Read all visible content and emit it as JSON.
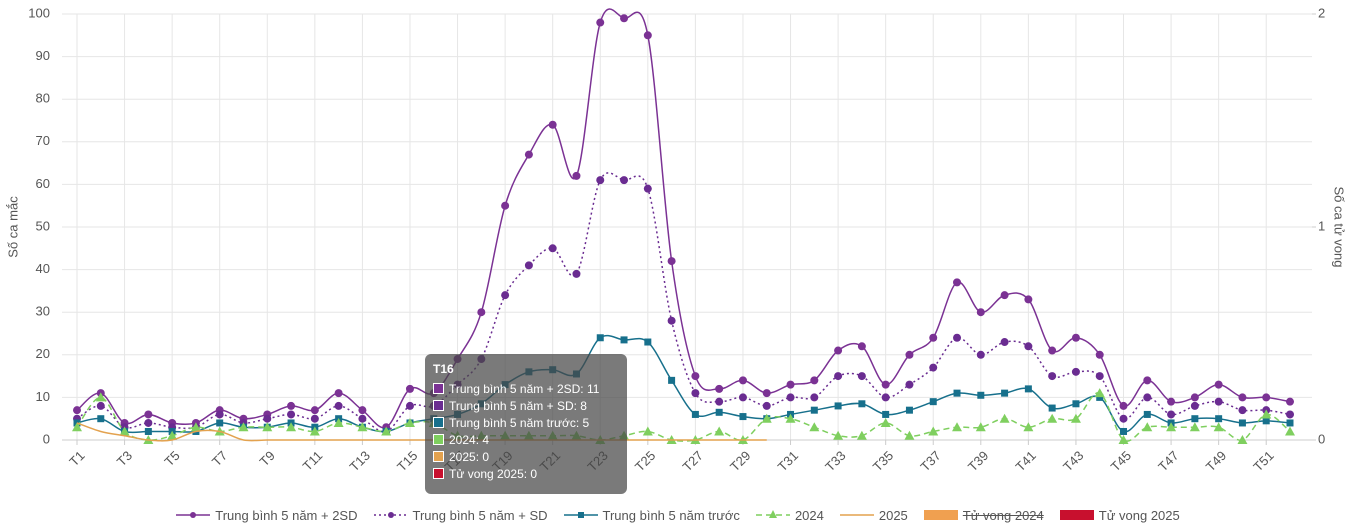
{
  "chart_data": {
    "type": "line",
    "y_label": "Số ca mắc",
    "y2_label": "Số ca tử vong",
    "categories": [
      "T1",
      null,
      "T3",
      null,
      "T5",
      null,
      "T7",
      null,
      "T9",
      null,
      "T11",
      null,
      "T13",
      null,
      "T15",
      null,
      "T17",
      null,
      "T19",
      null,
      "T21",
      null,
      "T23",
      null,
      "T25",
      null,
      "T27",
      null,
      "T29",
      null,
      "T31",
      null,
      "T33",
      null,
      "T35",
      null,
      "T37",
      null,
      "T39",
      null,
      "T41",
      null,
      "T43",
      null,
      "T45",
      null,
      "T47",
      null,
      "T49",
      null,
      "T51",
      null
    ],
    "ylim": [
      0,
      100
    ],
    "yticks": [
      0,
      10,
      20,
      30,
      40,
      50,
      60,
      70,
      80,
      90,
      100
    ],
    "y2lim": [
      0,
      2
    ],
    "y2ticks": [
      0,
      1,
      2
    ],
    "grid": true,
    "legend": "bottom",
    "series": [
      {
        "name": "Trung bình 5 năm + 2SD",
        "type": "line",
        "color": "#7b3294",
        "dash": "solid",
        "marker": "circle",
        "values": [
          7,
          11,
          4,
          6,
          4,
          4,
          7,
          5,
          6,
          8,
          7,
          11,
          7,
          3,
          12,
          11,
          19,
          30,
          55,
          67,
          74,
          62,
          98,
          99,
          95,
          42,
          15,
          12,
          14,
          11,
          13,
          14,
          21,
          22,
          13,
          20,
          24,
          37,
          30,
          34,
          33,
          21,
          24,
          20,
          8,
          14,
          9,
          10,
          13,
          10,
          10,
          9
        ]
      },
      {
        "name": "Trung bình 5 năm + SD",
        "type": "line",
        "color": "#6a2c91",
        "dash": "dotted",
        "marker": "circle",
        "values": [
          5,
          8,
          3,
          4,
          3,
          3,
          6,
          4,
          5,
          6,
          5,
          8,
          5,
          2,
          8,
          8,
          13,
          19,
          34,
          41,
          45,
          39,
          61,
          61,
          59,
          28,
          11,
          9,
          10,
          8,
          10,
          10,
          15,
          15,
          10,
          13,
          17,
          24,
          20,
          23,
          22,
          15,
          16,
          15,
          5,
          10,
          6,
          8,
          9,
          7,
          7,
          6
        ]
      },
      {
        "name": "Trung bình 5 năm trước",
        "type": "line",
        "color": "#17708c",
        "dash": "solid",
        "marker": "square",
        "values": [
          4,
          5,
          2,
          2,
          2,
          2,
          4,
          3,
          3,
          4,
          3,
          5,
          3,
          2,
          4,
          5,
          6,
          8.5,
          13,
          16,
          16.5,
          15.5,
          24,
          23.5,
          23,
          14,
          6,
          6.5,
          5.5,
          5,
          6,
          7,
          8,
          8.5,
          6,
          7,
          9,
          11,
          10.5,
          11,
          12,
          7.5,
          8.5,
          10,
          2,
          6,
          4,
          5,
          5,
          4,
          4.5,
          4
        ]
      },
      {
        "name": "2024",
        "type": "line",
        "color": "#7fcf5f",
        "dash": "dashed",
        "marker": "triangle",
        "values": [
          3,
          10,
          2,
          0,
          1,
          3,
          2,
          3,
          3,
          3,
          2,
          4,
          3,
          2,
          4,
          4,
          1,
          1,
          1,
          1,
          1,
          1,
          0,
          1,
          2,
          0,
          0,
          2,
          0,
          5,
          5,
          3,
          1,
          1,
          4,
          1,
          2,
          3,
          3,
          5,
          3,
          5,
          5,
          11,
          0,
          3,
          3,
          3,
          3,
          0,
          6,
          2
        ]
      },
      {
        "name": "2025",
        "type": "line",
        "color": "#e3a24f",
        "dash": "solid",
        "marker": "none",
        "values": [
          4,
          2,
          1,
          0,
          0,
          2,
          2,
          0,
          0,
          0,
          0,
          0,
          0,
          0,
          0,
          0,
          0,
          0,
          0,
          0,
          0,
          0,
          0,
          0,
          0,
          0,
          0,
          0,
          0,
          0,
          null,
          null,
          null,
          null,
          null,
          null,
          null,
          null,
          null,
          null,
          null,
          null,
          null,
          null,
          null,
          null,
          null,
          null,
          null,
          null,
          null,
          null
        ]
      },
      {
        "name": "Tử vong 2024",
        "type": "bar",
        "color": "#f0a050",
        "axis": "y2",
        "hidden": true
      },
      {
        "name": "Tử vong 2025",
        "type": "bar",
        "color": "#c8102e",
        "axis": "y2",
        "values": [
          0,
          0,
          0,
          0,
          0,
          0,
          0,
          0,
          0,
          0,
          0,
          0,
          0,
          0,
          0,
          0,
          0,
          0,
          0,
          0,
          0,
          0,
          0,
          0,
          0,
          0,
          0,
          0,
          0,
          0,
          0,
          0,
          0,
          0,
          0,
          0,
          0,
          0,
          0,
          0,
          0,
          0,
          0,
          0,
          0,
          0,
          0,
          0,
          0,
          0,
          0,
          0
        ]
      }
    ],
    "tooltip": {
      "title": "T16",
      "lines": [
        {
          "text": "Trung bình 5 năm + 2SD: 11",
          "color": "#7b3294"
        },
        {
          "text": "Trung bình 5 năm + SD: 8",
          "color": "#6a2c91"
        },
        {
          "text": "Trung bình 5 năm trước: 5",
          "color": "#17708c"
        },
        {
          "text": "2024: 4",
          "color": "#7fcf5f"
        },
        {
          "text": "2025: 0",
          "color": "#e3a24f"
        },
        {
          "text": "Tử vong 2025: 0",
          "color": "#c8102e"
        }
      ]
    }
  }
}
